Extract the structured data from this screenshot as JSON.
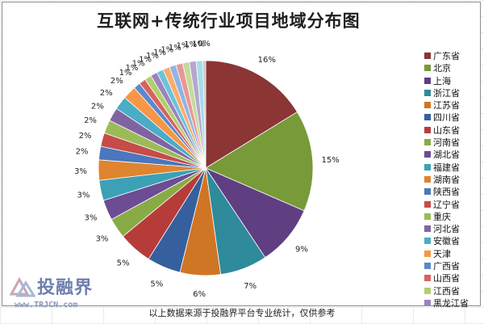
{
  "chart_data": {
    "type": "pie",
    "title": "互联网+传统行业项目地域分布图",
    "start": "top, clockwise",
    "slices": [
      {
        "label": "广东省",
        "value": 16,
        "display": "16%",
        "color": "#8b3535"
      },
      {
        "label": "北京",
        "value": 15,
        "display": "15%",
        "color": "#789a38"
      },
      {
        "label": "上海",
        "value": 9,
        "display": "9%",
        "color": "#5f3f82"
      },
      {
        "label": "浙江省",
        "value": 7,
        "display": "7%",
        "color": "#2f8a9c"
      },
      {
        "label": "江苏省",
        "value": 6,
        "display": "6%",
        "color": "#cf7625"
      },
      {
        "label": "四川省",
        "value": 5,
        "display": "5%",
        "color": "#365f9d"
      },
      {
        "label": "山东省",
        "value": 5,
        "display": "5%",
        "color": "#b63c3a"
      },
      {
        "label": "河南省",
        "value": 3,
        "display": "3%",
        "color": "#89ab46"
      },
      {
        "label": "湖北省",
        "value": 3,
        "display": "3%",
        "color": "#6c4c94"
      },
      {
        "label": "福建省",
        "value": 3,
        "display": "3%",
        "color": "#3ca1b6"
      },
      {
        "label": "湖南省",
        "value": 3,
        "display": "3%",
        "color": "#df842f"
      },
      {
        "label": "陕西省",
        "value": 2,
        "display": "2%",
        "color": "#4a77bd"
      },
      {
        "label": "辽宁省",
        "value": 2,
        "display": "2%",
        "color": "#c54c49"
      },
      {
        "label": "重庆",
        "value": 2,
        "display": "2%",
        "color": "#9bbb59"
      },
      {
        "label": "河北省",
        "value": 2,
        "display": "2%",
        "color": "#8064a2"
      },
      {
        "label": "安徽省",
        "value": 2,
        "display": "2%",
        "color": "#4bacc6"
      },
      {
        "label": "天津",
        "value": 2,
        "display": "2%",
        "color": "#f79646"
      },
      {
        "label": "广西省",
        "value": 1,
        "display": "1%",
        "color": "#5b88cf"
      },
      {
        "label": "山西省",
        "value": 1,
        "display": "1%",
        "color": "#d9625f"
      },
      {
        "label": "江西省",
        "value": 1,
        "display": "1%",
        "color": "#afd06b"
      },
      {
        "label": "黑龙江省",
        "value": 1,
        "display": "1%",
        "color": "#9b83bd"
      },
      {
        "label": "",
        "value": 1,
        "display": "1%",
        "color": "#6cc3d9"
      },
      {
        "label": "",
        "value": 1,
        "display": "1%",
        "color": "#f9ad6c"
      },
      {
        "label": "",
        "value": 1,
        "display": "1%",
        "color": "#93b3e5"
      },
      {
        "label": "",
        "value": 1,
        "display": "1%",
        "color": "#e89896"
      },
      {
        "label": "",
        "value": 1,
        "display": "1%",
        "color": "#c5db9a"
      },
      {
        "label": "",
        "value": 1,
        "display": "1%",
        "color": "#b6a6cf"
      },
      {
        "label": "",
        "value": 1,
        "display": "1%",
        "color": "#a7dcea"
      },
      {
        "label": "",
        "value": 0.4,
        "display": "0%",
        "color": "#c9c3be"
      }
    ],
    "legend_position": "right"
  },
  "brand": {
    "name": "投融界",
    "url": "www.TRJCN.com"
  },
  "footnote": "以上数据来源于投融界平台专业统计，仅供参考"
}
